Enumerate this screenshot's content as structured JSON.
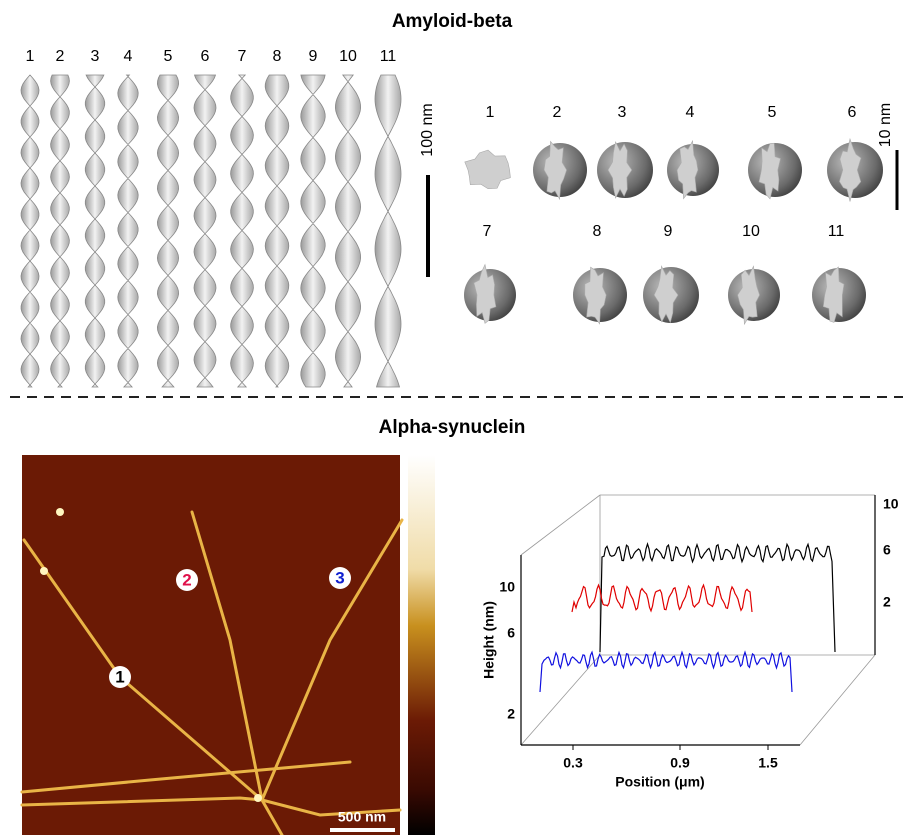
{
  "top_section": {
    "title": "Amyloid-beta",
    "fibril_labels": [
      "1",
      "2",
      "3",
      "4",
      "5",
      "6",
      "7",
      "8",
      "9",
      "10",
      "11"
    ],
    "scale_bar": "100 nm",
    "cross_section_labels": [
      "1",
      "2",
      "3",
      "4",
      "5",
      "6",
      "7",
      "8",
      "9",
      "10",
      "11"
    ],
    "cross_section_scale_bar": "10 nm"
  },
  "bottom_section": {
    "title": "Alpha-synuclein",
    "afm_image": {
      "fibril_labels": [
        "1",
        "2",
        "3"
      ],
      "scale_bar": "500 nm"
    },
    "height_plot": {
      "y_label": "Height (nm)",
      "x_label": "Position (μm)",
      "x_ticks": [
        0.3,
        0.9,
        1.5
      ],
      "y_ticks_front": [
        2,
        6,
        10
      ],
      "y_ticks_back": [
        2,
        6,
        10
      ]
    }
  }
}
